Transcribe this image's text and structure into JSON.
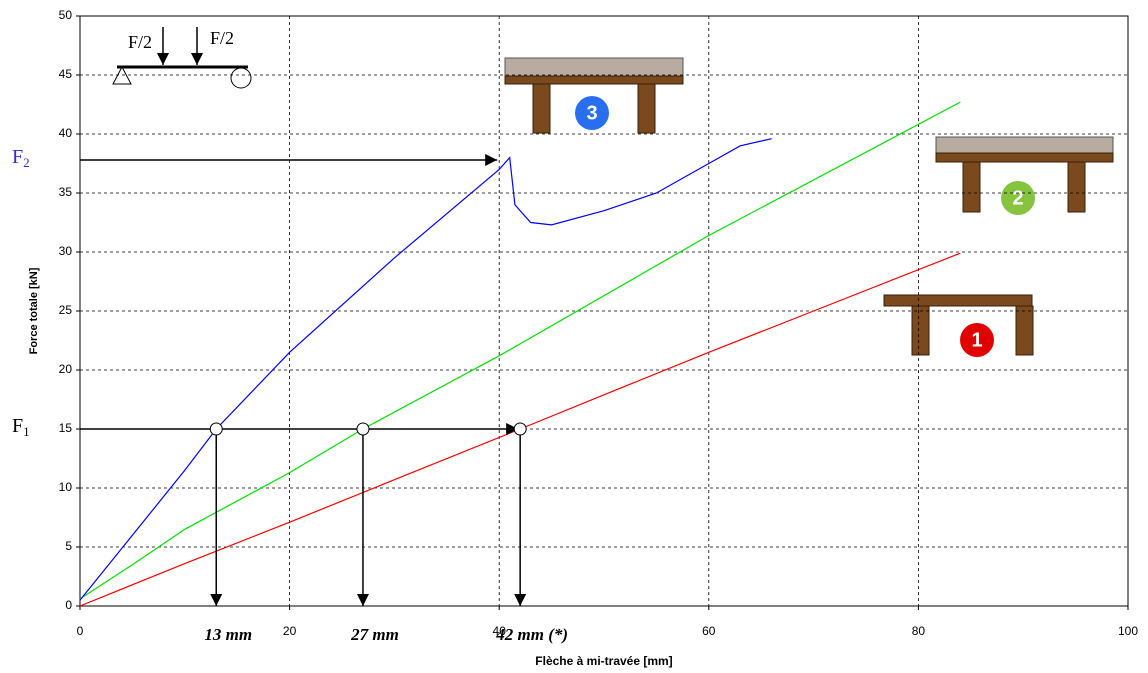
{
  "chart_data": {
    "type": "line",
    "x_label": "Flèche à mi-travée [mm]",
    "y_label": "Force totale [kN]",
    "xlim": [
      0,
      100
    ],
    "ylim": [
      0,
      50
    ],
    "xticks": [
      0,
      20,
      40,
      60,
      80,
      100
    ],
    "yticks": [
      0,
      5,
      10,
      15,
      20,
      25,
      30,
      35,
      40,
      45,
      50
    ],
    "grid": true,
    "series": [
      {
        "badge": "1",
        "color": "#ff0000",
        "x": [
          0,
          10,
          20,
          30,
          42,
          50,
          60,
          70,
          84
        ],
        "values": [
          0,
          3.6,
          7.1,
          10.7,
          15,
          17.9,
          21.5,
          25,
          29.9
        ]
      },
      {
        "badge": "2",
        "color": "#00e000",
        "x": [
          0,
          5,
          10,
          20,
          27,
          40,
          60,
          84
        ],
        "values": [
          0.6,
          3.5,
          6.5,
          11.3,
          15,
          21.2,
          31.4,
          42.7
        ]
      },
      {
        "badge": "3",
        "color": "#0000ff",
        "x": [
          0,
          5,
          10,
          13,
          20,
          30,
          40,
          41,
          41.5,
          43,
          45,
          50,
          55,
          60,
          63,
          66
        ],
        "values": [
          0.5,
          6,
          11.5,
          15,
          21.5,
          29.5,
          37,
          38,
          34,
          32.5,
          32.3,
          33.5,
          35,
          37.5,
          39,
          39.6
        ]
      }
    ],
    "f_levels": [
      {
        "name": "F",
        "sub": "1",
        "y": 15,
        "x": 42
      },
      {
        "name": "F",
        "sub": "2",
        "y": 37.8,
        "x": 40
      }
    ],
    "points": [
      {
        "x": 13,
        "y": 15,
        "label": "13 mm"
      },
      {
        "x": 27,
        "y": 15,
        "label": "27 mm"
      },
      {
        "x": 42,
        "y": 15,
        "label": "42 mm (*)"
      }
    ],
    "load_label": "F/2"
  }
}
